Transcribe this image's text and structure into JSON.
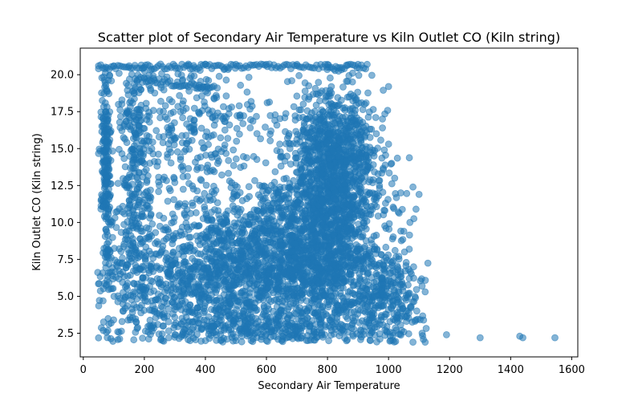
{
  "chart_data": {
    "type": "scatter",
    "title": "Scatter plot of Secondary Air Temperature vs Kiln Outlet CO (Kiln string)",
    "xlabel": "Secondary Air Temperature",
    "ylabel": "Kiln Outlet CO (Kiln string)",
    "xlim": [
      -10,
      1620
    ],
    "ylim": [
      0.9,
      21.8
    ],
    "xticks": [
      0,
      200,
      400,
      600,
      800,
      1000,
      1200,
      1400,
      1600
    ],
    "yticks": [
      2.5,
      5.0,
      7.5,
      10.0,
      12.5,
      15.0,
      17.5,
      20.0
    ],
    "ytick_labels": [
      "2.5",
      "5.0",
      "7.5",
      "10.0",
      "12.5",
      "15.0",
      "17.5",
      "20.0"
    ],
    "marker_color": "#1f77b4",
    "marker_alpha": 0.55,
    "grid": false,
    "legend": "none",
    "series": [
      {
        "points": [
          [
            50,
            20.6
          ],
          [
            100,
            20.6
          ],
          [
            150,
            20.6
          ],
          [
            200,
            20.5
          ],
          [
            300,
            20.6
          ],
          [
            400,
            20.7
          ],
          [
            500,
            20.7
          ],
          [
            600,
            20.7
          ],
          [
            700,
            20.7
          ],
          [
            800,
            20.7
          ],
          [
            900,
            20.7
          ],
          [
            930,
            20.7
          ],
          [
            1190,
            2.4
          ],
          [
            1300,
            2.2
          ],
          [
            1430,
            2.3
          ],
          [
            1440,
            2.2
          ],
          [
            1545,
            2.2
          ],
          [
            1120,
            1.9
          ],
          [
            1110,
            2.5
          ],
          [
            1080,
            1.9
          ],
          [
            1050,
            2.6
          ],
          [
            1100,
            11.9
          ],
          [
            1080,
            12.4
          ],
          [
            1090,
            10.9
          ],
          [
            1070,
            10.0
          ],
          [
            1050,
            9.4
          ],
          [
            1030,
            6.8
          ],
          [
            1110,
            5.7
          ],
          [
            1120,
            5.3
          ],
          [
            1000,
            19.2
          ],
          [
            950,
            13.9
          ],
          [
            960,
            16.0
          ],
          [
            980,
            17.0
          ],
          [
            1000,
            15.3
          ],
          [
            1010,
            14.0
          ],
          [
            1020,
            13.0
          ],
          [
            970,
            12.5
          ],
          [
            990,
            11.3
          ],
          [
            1040,
            12.0
          ],
          [
            260,
            2.0
          ],
          [
            280,
            2.2
          ],
          [
            300,
            2.4
          ],
          [
            350,
            2.0
          ],
          [
            400,
            2.0
          ],
          [
            450,
            2.0
          ],
          [
            500,
            2.0
          ],
          [
            550,
            2.0
          ],
          [
            600,
            2.0
          ],
          [
            650,
            2.0
          ],
          [
            700,
            2.2
          ]
        ]
      }
    ]
  }
}
